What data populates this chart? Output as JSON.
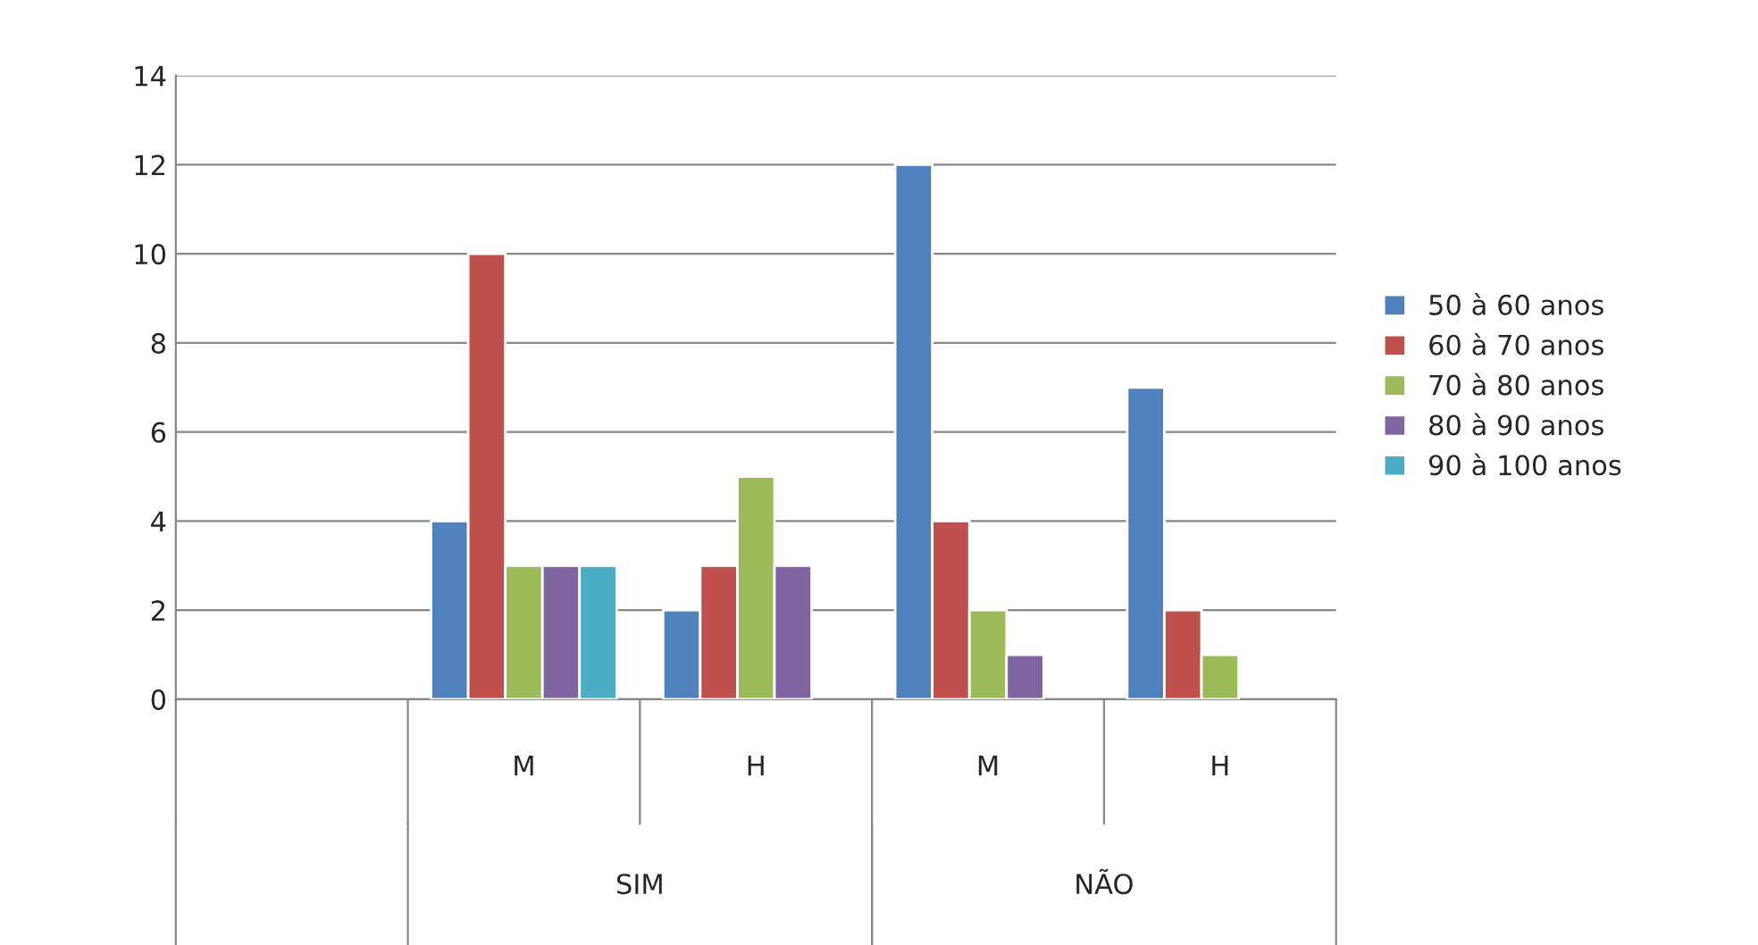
{
  "chart_data": {
    "type": "bar",
    "categories": [
      null,
      "M",
      "H",
      "M",
      "H"
    ],
    "series": [
      {
        "name": "50 à 60 anos",
        "color": "#4f81bd",
        "values": [
          null,
          4,
          2,
          12,
          7
        ]
      },
      {
        "name": "60 à 70 anos",
        "color": "#c0504d",
        "values": [
          null,
          10,
          3,
          4,
          2
        ]
      },
      {
        "name": "70 à 80 anos",
        "color": "#9bbb59",
        "values": [
          null,
          3,
          5,
          2,
          1
        ]
      },
      {
        "name": "80 à 90 anos",
        "color": "#8064a2",
        "values": [
          null,
          3,
          3,
          1,
          null
        ]
      },
      {
        "name": "90 à 100 anos",
        "color": "#4bacc6",
        "values": [
          null,
          3,
          null,
          null,
          null
        ]
      }
    ],
    "annotations": [
      "SIM",
      "NÃO"
    ],
    "ylim": [
      0,
      14
    ],
    "yticks": [
      0,
      2,
      4,
      6,
      8,
      10,
      12,
      14
    ],
    "grid": "y",
    "legend": "right"
  }
}
